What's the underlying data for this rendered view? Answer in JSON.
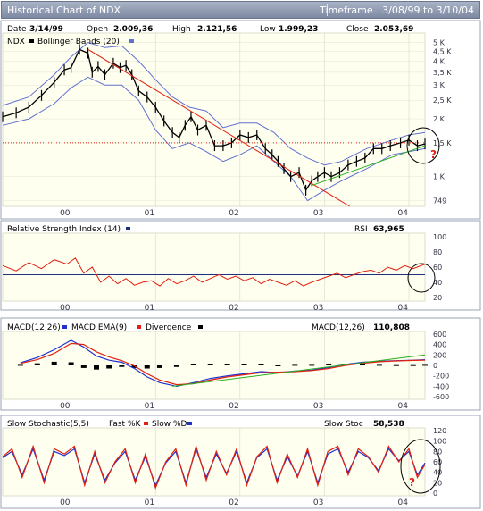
{
  "window": {
    "title": "Historical Chart of NDX",
    "timeframe_label": "Timeframe",
    "timeframe_from": "3/08/99",
    "timeframe_to_word": "to",
    "timeframe_to": "3/10/04"
  },
  "colors": {
    "panel_bg": "#fffff0",
    "frame": "#9aa3b5",
    "price": "#000000",
    "bollinger": "#6070d0",
    "rsi": "#e02010",
    "macd": "#2030d0",
    "macd_ema": "#e02010",
    "divergence": "#000000",
    "trend_down": "#e02010",
    "trend_up": "#28b020",
    "fast_k": "#e02010",
    "slow_d": "#2030d0"
  },
  "chart_data": [
    {
      "type": "line",
      "panel": "price",
      "series": [
        {
          "name": "NDX",
          "x": [
            1999.19,
            1999.35,
            1999.5,
            1999.65,
            1999.8,
            1999.92,
            2000.0,
            2000.1,
            2000.2,
            2000.25,
            2000.32,
            2000.4,
            2000.5,
            2000.58,
            2000.65,
            2000.72,
            2000.8,
            2000.9,
            2001.0,
            2001.1,
            2001.2,
            2001.28,
            2001.35,
            2001.42,
            2001.5,
            2001.6,
            2001.7,
            2001.8,
            2001.9,
            2002.0,
            2002.1,
            2002.2,
            2002.3,
            2002.38,
            2002.45,
            2002.52,
            2002.6,
            2002.7,
            2002.78,
            2002.85,
            2002.92,
            2003.0,
            2003.08,
            2003.18,
            2003.28,
            2003.38,
            2003.48,
            2003.58,
            2003.68,
            2003.78,
            2003.9,
            2004.0,
            2004.1,
            2004.19
          ],
          "y": [
            2050,
            2150,
            2300,
            2650,
            3100,
            3600,
            3700,
            4600,
            4400,
            3500,
            3750,
            3400,
            3900,
            3700,
            3800,
            3400,
            2800,
            2600,
            2300,
            1950,
            1700,
            1600,
            1850,
            2050,
            1750,
            1850,
            1450,
            1450,
            1500,
            1650,
            1600,
            1650,
            1400,
            1300,
            1200,
            1100,
            1000,
            1050,
            850,
            950,
            1000,
            1050,
            1000,
            1050,
            1150,
            1200,
            1250,
            1400,
            1400,
            1450,
            1500,
            1550,
            1450,
            1480
          ]
        },
        {
          "name": "Bollinger Bands (20)",
          "x": [
            1999.19,
            1999.5,
            1999.8,
            2000.0,
            2000.2,
            2000.4,
            2000.6,
            2000.8,
            2001.0,
            2001.2,
            2001.4,
            2001.6,
            2001.8,
            2002.0,
            2002.2,
            2002.4,
            2002.6,
            2002.8,
            2003.0,
            2003.2,
            2003.5,
            2003.8,
            2004.0,
            2004.19
          ],
          "y": [
            2350,
            2600,
            3400,
            4200,
            5000,
            4700,
            4800,
            4000,
            3200,
            2600,
            2300,
            2200,
            1800,
            1900,
            1900,
            1700,
            1400,
            1250,
            1150,
            1200,
            1400,
            1550,
            1650,
            1700
          ]
        },
        {
          "name": "",
          "x": [
            1999.19,
            1999.5,
            1999.8,
            2000.0,
            2000.2,
            2000.4,
            2000.6,
            2000.8,
            2001.0,
            2001.2,
            2001.4,
            2001.6,
            2001.8,
            2002.0,
            2002.2,
            2002.4,
            2002.6,
            2002.8,
            2003.0,
            2003.2,
            2003.5,
            2003.8,
            2004.0,
            2004.19
          ],
          "y": [
            1850,
            2000,
            2400,
            2900,
            3300,
            3000,
            3000,
            2500,
            1750,
            1400,
            1500,
            1350,
            1200,
            1300,
            1450,
            1200,
            1000,
            750,
            850,
            950,
            1100,
            1300,
            1350,
            1400
          ]
        }
      ],
      "annotations": {
        "date_label": "Date",
        "date": "3/14/99",
        "open_label": "Open",
        "open": "2.009,36",
        "high_label": "High",
        "high": "2.121,56",
        "low_label": "Low",
        "low": "1.999,23",
        "close_label": "Close",
        "close": "2.053,69",
        "question_mark": "?"
      },
      "legend": [
        "NDX",
        "Bollinger Bands (20)"
      ],
      "x_ticks": [
        "00",
        "01",
        "02",
        "03",
        "04"
      ],
      "y_ticks": [
        "5 K",
        "4,5 K",
        "4 K",
        "3,5 K",
        "3 K",
        "2,5 K",
        "2 K",
        "1,5 K",
        "1 K",
        "749"
      ],
      "y_tick_values": [
        5000,
        4500,
        4000,
        3500,
        3000,
        2500,
        2000,
        1500,
        1000,
        749
      ],
      "y_scale": "log",
      "ylim": [
        700,
        5600
      ],
      "xlim": [
        1999.19,
        2004.19
      ],
      "reference_lines": [
        {
          "kind": "horizontal",
          "y": 1500,
          "style": "dotted red"
        },
        {
          "kind": "trend",
          "from": [
            2000.2,
            4600
          ],
          "to": [
            2003.3,
            700
          ],
          "color": "red"
        },
        {
          "kind": "trend",
          "from": [
            2002.85,
            900
          ],
          "to": [
            2004.19,
            1450
          ],
          "color": "green"
        }
      ]
    },
    {
      "type": "line",
      "panel": "rsi",
      "title": "Relative Strength Index (14)",
      "value_label": "RSI",
      "value": "63,965",
      "series": [
        {
          "name": "RSI",
          "x": [
            1999.19,
            1999.35,
            1999.5,
            1999.65,
            1999.8,
            1999.95,
            2000.05,
            2000.15,
            2000.25,
            2000.35,
            2000.45,
            2000.55,
            2000.65,
            2000.75,
            2000.85,
            2000.95,
            2001.05,
            2001.15,
            2001.25,
            2001.35,
            2001.45,
            2001.55,
            2001.65,
            2001.75,
            2001.85,
            2001.95,
            2002.05,
            2002.15,
            2002.25,
            2002.35,
            2002.45,
            2002.55,
            2002.65,
            2002.75,
            2002.85,
            2002.95,
            2003.05,
            2003.15,
            2003.25,
            2003.35,
            2003.45,
            2003.55,
            2003.65,
            2003.75,
            2003.85,
            2003.95,
            2004.05,
            2004.19
          ],
          "y": [
            62,
            55,
            66,
            58,
            70,
            64,
            72,
            52,
            60,
            40,
            48,
            38,
            45,
            36,
            40,
            42,
            35,
            45,
            38,
            42,
            48,
            40,
            45,
            50,
            44,
            48,
            42,
            46,
            38,
            44,
            40,
            36,
            42,
            35,
            40,
            44,
            48,
            52,
            46,
            50,
            54,
            56,
            52,
            60,
            56,
            62,
            58,
            64
          ]
        }
      ],
      "y_ticks": [
        "100",
        "80",
        "60",
        "40",
        "20"
      ],
      "ylim": [
        15,
        105
      ],
      "reference_lines": [
        {
          "kind": "horizontal",
          "y": 50
        }
      ],
      "x_ticks": [
        "00",
        "01",
        "02",
        "03",
        "04"
      ]
    },
    {
      "type": "line",
      "panel": "macd",
      "legend": [
        "MACD(12,26)",
        "MACD EMA(9)",
        "Divergence"
      ],
      "value_label": "MACD(12,26)",
      "value": "110,808",
      "series": [
        {
          "name": "MACD(12,26)",
          "x": [
            1999.4,
            1999.6,
            1999.8,
            2000.0,
            2000.15,
            2000.3,
            2000.45,
            2000.6,
            2000.75,
            2000.9,
            2001.05,
            2001.25,
            2001.45,
            2001.65,
            2001.85,
            2002.05,
            2002.25,
            2002.45,
            2002.65,
            2002.85,
            2003.05,
            2003.25,
            2003.45,
            2003.65,
            2003.85,
            2004.05,
            2004.19
          ],
          "y": [
            50,
            150,
            300,
            480,
            350,
            180,
            100,
            60,
            -60,
            -220,
            -330,
            -400,
            -330,
            -250,
            -200,
            -160,
            -120,
            -140,
            -110,
            -90,
            -40,
            20,
            60,
            80,
            90,
            100,
            110
          ]
        },
        {
          "name": "MACD EMA(9)",
          "x": [
            1999.4,
            1999.6,
            1999.8,
            2000.0,
            2000.15,
            2000.3,
            2000.45,
            2000.6,
            2000.75,
            2000.9,
            2001.05,
            2001.25,
            2001.45,
            2001.65,
            2001.85,
            2002.05,
            2002.25,
            2002.45,
            2002.65,
            2002.85,
            2003.05,
            2003.25,
            2003.45,
            2003.65,
            2003.85,
            2004.05,
            2004.19
          ],
          "y": [
            40,
            110,
            230,
            420,
            400,
            260,
            160,
            90,
            -10,
            -160,
            -280,
            -370,
            -350,
            -280,
            -220,
            -180,
            -140,
            -130,
            -120,
            -100,
            -60,
            0,
            40,
            70,
            85,
            95,
            100
          ]
        }
      ],
      "y_ticks": [
        "600",
        "400",
        "200",
        "0",
        "-200",
        "-400",
        "-600"
      ],
      "ylim": [
        -650,
        650
      ],
      "reference_lines": [
        {
          "kind": "trend",
          "from": [
            2001.2,
            -400
          ],
          "to": [
            2004.19,
            200
          ],
          "color": "green"
        }
      ],
      "x_ticks": [
        "00",
        "01",
        "02",
        "03",
        "04"
      ]
    },
    {
      "type": "line",
      "panel": "stochastic",
      "title": "Slow Stochastic(5,5)",
      "legend": [
        "Fast %K",
        "Slow %D"
      ],
      "value_label": "Slow Stoc",
      "value": "58,538",
      "question_mark": "?",
      "y_ticks": [
        "120",
        "100",
        "80",
        "60",
        "40",
        "20",
        "0"
      ],
      "ylim": [
        -5,
        125
      ],
      "x_ticks": [
        "00",
        "01",
        "02",
        "03",
        "04"
      ],
      "series_shape": "oscillating 10-90",
      "series": [
        {
          "name": "Fast %K",
          "x": [
            1999.19,
            1999.3,
            1999.42,
            1999.55,
            1999.68,
            1999.8,
            1999.92,
            2000.04,
            2000.16,
            2000.28,
            2000.4,
            2000.52,
            2000.64,
            2000.76,
            2000.88,
            2001.0,
            2001.12,
            2001.24,
            2001.36,
            2001.48,
            2001.6,
            2001.72,
            2001.84,
            2001.96,
            2002.08,
            2002.2,
            2002.32,
            2002.44,
            2002.56,
            2002.68,
            2002.8,
            2002.92,
            2003.04,
            2003.16,
            2003.28,
            2003.4,
            2003.52,
            2003.64,
            2003.76,
            2003.88,
            2004.0,
            2004.1,
            2004.19
          ],
          "y": [
            70,
            85,
            30,
            90,
            20,
            85,
            75,
            90,
            15,
            80,
            20,
            60,
            85,
            20,
            75,
            10,
            60,
            85,
            15,
            90,
            25,
            80,
            35,
            85,
            15,
            70,
            90,
            20,
            75,
            30,
            85,
            15,
            80,
            90,
            35,
            85,
            70,
            40,
            90,
            60,
            85,
            30,
            55
          ]
        },
        {
          "name": "Slow %D",
          "x": [
            1999.19,
            1999.3,
            1999.42,
            1999.55,
            1999.68,
            1999.8,
            1999.92,
            2000.04,
            2000.16,
            2000.28,
            2000.4,
            2000.52,
            2000.64,
            2000.76,
            2000.88,
            2001.0,
            2001.12,
            2001.24,
            2001.36,
            2001.48,
            2001.6,
            2001.72,
            2001.84,
            2001.96,
            2002.08,
            2002.2,
            2002.32,
            2002.44,
            2002.56,
            2002.68,
            2002.8,
            2002.92,
            2003.04,
            2003.16,
            2003.28,
            2003.4,
            2003.52,
            2003.64,
            2003.76,
            2003.88,
            2004.0,
            2004.1,
            2004.19
          ],
          "y": [
            68,
            80,
            35,
            85,
            25,
            80,
            72,
            85,
            20,
            75,
            25,
            58,
            80,
            25,
            70,
            15,
            58,
            80,
            20,
            85,
            30,
            75,
            38,
            80,
            20,
            68,
            85,
            25,
            70,
            33,
            80,
            20,
            75,
            85,
            40,
            80,
            68,
            43,
            85,
            62,
            80,
            35,
            58
          ]
        }
      ]
    }
  ]
}
